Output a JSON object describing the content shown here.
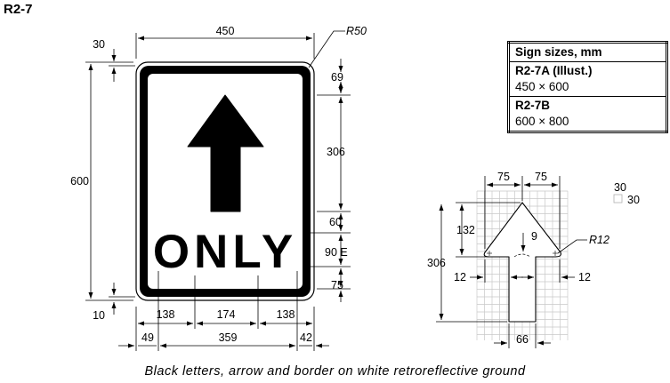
{
  "title": "R2-7",
  "caption": "Black letters, arrow and border on white retroreflective ground",
  "sign": {
    "legend": "ONLY",
    "colors": {
      "legend": "#000000",
      "background": "#ffffff",
      "grid": "#c8c8c8"
    }
  },
  "dimensions": {
    "width": "450",
    "height": "600",
    "corner_radius": "R50",
    "border_top": "30",
    "border_bottom": "10",
    "arrow_top_gap": "69",
    "arrow_length": "306",
    "arrow_to_text": "60",
    "text_height": "90 E",
    "text_bottom_gap": "75",
    "text_left": "138",
    "text_mid": "174",
    "text_right": "138",
    "legend_left": "49",
    "legend_width": "359",
    "legend_right": "42"
  },
  "arrow_detail": {
    "head_half_left": "75",
    "head_half_right": "75",
    "head_height": "132",
    "total_height": "306",
    "notch": "9",
    "radius": "R12",
    "inset_left": "12",
    "inset_right": "12",
    "shaft_width": "66",
    "grid_w": "30",
    "grid_h": "30"
  },
  "size_table": {
    "header": "Sign sizes, mm",
    "rows": [
      {
        "name": "R2-7A (Illust.)",
        "size": "450 × 600"
      },
      {
        "name": "R2-7B",
        "size": "600 × 800"
      }
    ]
  }
}
